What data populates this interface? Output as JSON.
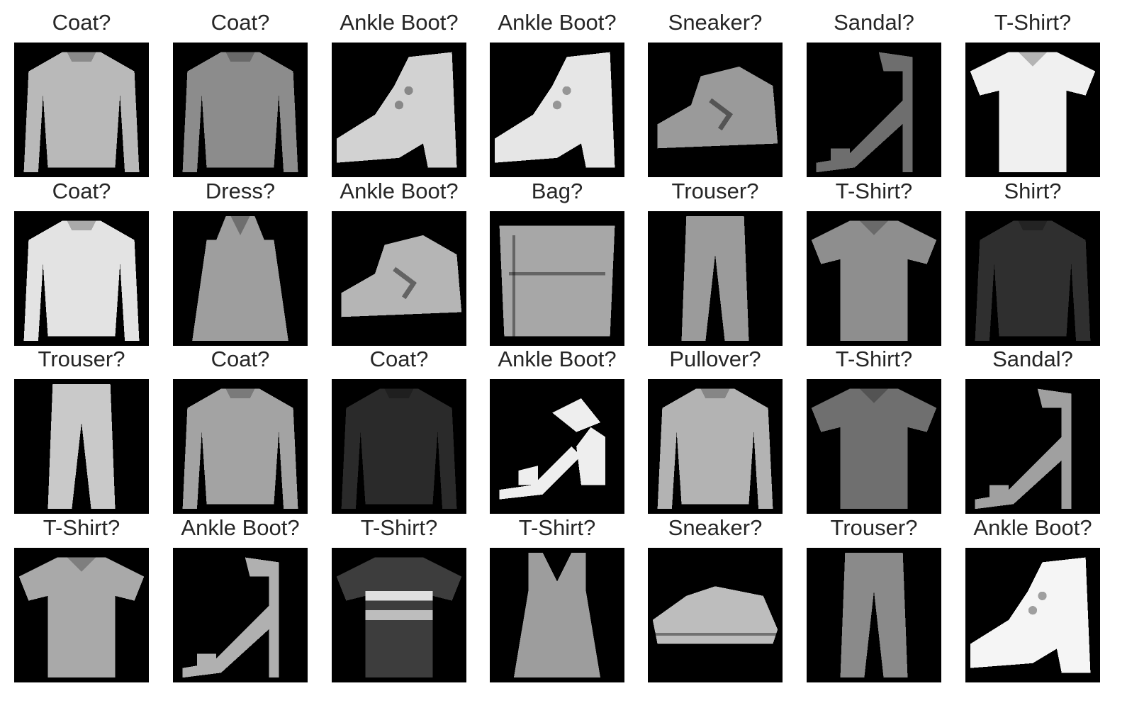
{
  "figure": {
    "rows": 4,
    "cols": 7,
    "items": [
      {
        "label": "Coat?",
        "icon": "long-sleeve-top-icon",
        "tone": "#b9b9b9"
      },
      {
        "label": "Coat?",
        "icon": "long-sleeve-top-icon",
        "tone": "#8c8c8c"
      },
      {
        "label": "Ankle Boot?",
        "icon": "ankle-boot-icon",
        "tone": "#d2d2d2"
      },
      {
        "label": "Ankle Boot?",
        "icon": "ankle-boot-icon",
        "tone": "#e6e6e6"
      },
      {
        "label": "Sneaker?",
        "icon": "sneaker-icon",
        "tone": "#9a9a9a"
      },
      {
        "label": "Sandal?",
        "icon": "strappy-sandal-icon",
        "tone": "#6e6e6e"
      },
      {
        "label": "T-Shirt?",
        "icon": "t-shirt-icon",
        "tone": "#f0f0f0"
      },
      {
        "label": "Coat?",
        "icon": "long-sleeve-top-icon",
        "tone": "#e3e3e3"
      },
      {
        "label": "Dress?",
        "icon": "dress-icon",
        "tone": "#9e9e9e"
      },
      {
        "label": "Ankle Boot?",
        "icon": "sneaker-icon",
        "tone": "#b5b5b5"
      },
      {
        "label": "Bag?",
        "icon": "bag-icon",
        "tone": "#a7a7a7"
      },
      {
        "label": "Trouser?",
        "icon": "trouser-icon",
        "tone": "#9b9b9b"
      },
      {
        "label": "T-Shirt?",
        "icon": "t-shirt-icon",
        "tone": "#8e8e8e"
      },
      {
        "label": "Shirt?",
        "icon": "long-sleeve-top-icon",
        "tone": "#2f2f2f"
      },
      {
        "label": "Trouser?",
        "icon": "trouser-icon",
        "tone": "#c9c9c9"
      },
      {
        "label": "Coat?",
        "icon": "long-sleeve-top-icon",
        "tone": "#a3a3a3"
      },
      {
        "label": "Coat?",
        "icon": "long-sleeve-top-icon",
        "tone": "#2a2a2a"
      },
      {
        "label": "Ankle Boot?",
        "icon": "heeled-sandal-icon",
        "tone": "#eeeeee"
      },
      {
        "label": "Pullover?",
        "icon": "long-sleeve-top-icon",
        "tone": "#b3b3b3"
      },
      {
        "label": "T-Shirt?",
        "icon": "t-shirt-icon",
        "tone": "#6f6f6f"
      },
      {
        "label": "Sandal?",
        "icon": "strappy-sandal-icon",
        "tone": "#a0a0a0"
      },
      {
        "label": "T-Shirt?",
        "icon": "t-shirt-icon",
        "tone": "#a9a9a9"
      },
      {
        "label": "Ankle Boot?",
        "icon": "strappy-sandal-icon",
        "tone": "#b0b0b0"
      },
      {
        "label": "T-Shirt?",
        "icon": "striped-t-shirt-icon",
        "tone": "#3d3d3d"
      },
      {
        "label": "T-Shirt?",
        "icon": "tank-top-icon",
        "tone": "#9d9d9d"
      },
      {
        "label": "Sneaker?",
        "icon": "low-sneaker-icon",
        "tone": "#bdbdbd"
      },
      {
        "label": "Trouser?",
        "icon": "trouser-icon",
        "tone": "#8a8a8a"
      },
      {
        "label": "Ankle Boot?",
        "icon": "ankle-boot-icon",
        "tone": "#f5f5f5"
      }
    ]
  }
}
